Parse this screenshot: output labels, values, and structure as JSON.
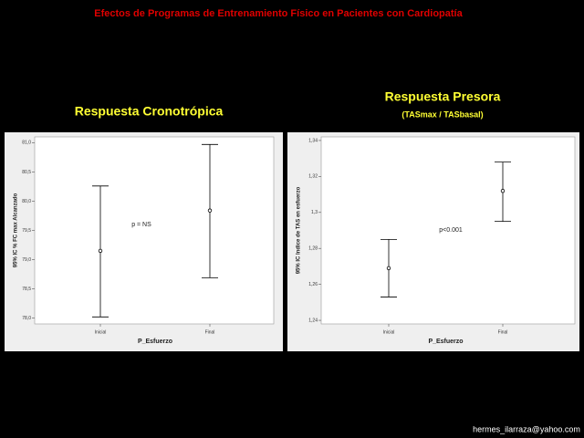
{
  "slide_title": "Efectos de Programas de Entrenamiento Físico en Pacientes con Cardiopatía",
  "footer": "hermes_ilarraza@yahoo.com",
  "chart_data": [
    {
      "type": "errorbar",
      "title": "Respuesta Cronotrópica",
      "categories": [
        "Inicial",
        "Final"
      ],
      "values": [
        79.15,
        79.84
      ],
      "lower": [
        78.02,
        78.69
      ],
      "upper": [
        80.26,
        80.97
      ],
      "x_label": "P_Esfuerzo",
      "y_label": "95% IC % FC max Alcanzado",
      "annotation": "p = NS",
      "ylim": [
        77.9,
        81.1
      ],
      "yticks": [
        {
          "value": 78.0,
          "label": "78,0"
        },
        {
          "value": 78.5,
          "label": "78,5"
        },
        {
          "value": 79.0,
          "label": "79,0"
        },
        {
          "value": 79.5,
          "label": "79,5"
        },
        {
          "value": 80.0,
          "label": "80,0"
        },
        {
          "value": 80.5,
          "label": "80,5"
        },
        {
          "value": 81.0,
          "label": "81,0"
        }
      ],
      "color": "#000000"
    },
    {
      "type": "errorbar",
      "title": "Respuesta Presora",
      "subtitle": "(TASmax / TASbasal)",
      "categories": [
        "Inicial",
        "Final"
      ],
      "values": [
        1.269,
        1.312
      ],
      "lower": [
        1.253,
        1.295
      ],
      "upper": [
        1.285,
        1.328
      ],
      "x_label": "P_Esfuerzo",
      "y_label": "95% IC Indice de TAS en esfuerzo",
      "annotation": "p<0.001",
      "ylim": [
        1.238,
        1.342
      ],
      "yticks": [
        {
          "value": 1.24,
          "label": "1,24"
        },
        {
          "value": 1.26,
          "label": "1,26"
        },
        {
          "value": 1.28,
          "label": "1,28"
        },
        {
          "value": 1.3,
          "label": "1,3"
        },
        {
          "value": 1.32,
          "label": "1,32"
        },
        {
          "value": 1.34,
          "label": "1,34"
        }
      ],
      "color": "#000000"
    }
  ]
}
